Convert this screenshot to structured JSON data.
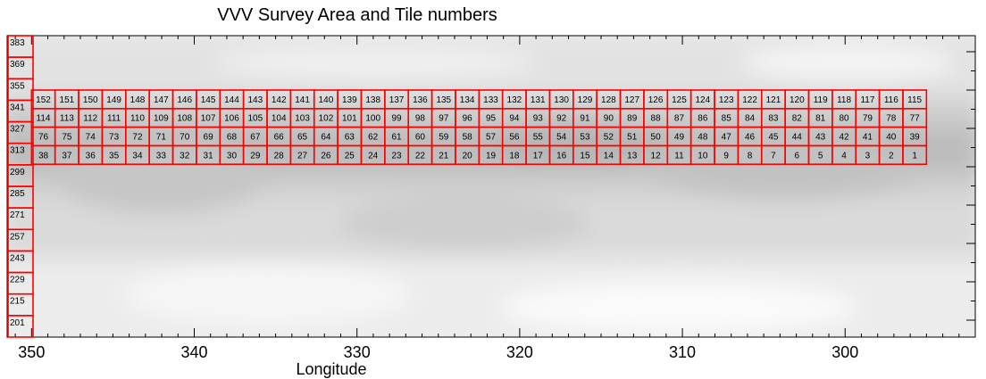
{
  "chart_data": {
    "type": "heatmap",
    "title": "VVV Survey Area and Tile numbers",
    "xlabel": "Longitude",
    "ylabel": "",
    "xlim": [
      351.5,
      292.0
    ],
    "x_ticks": [
      350,
      340,
      330,
      320,
      310,
      300
    ],
    "x_tick_labels": [
      "350",
      "340",
      "330",
      "320",
      "310",
      "300"
    ],
    "colors": {
      "tile_outline": "#ff0000",
      "background_light": "#f2f2f2",
      "background_mid": "#dcdcdc",
      "background_dark": "#c4c4c4",
      "axis": "#000000"
    },
    "bulge_tiles": {
      "lon_range": [
        350.0,
        295.0
      ],
      "columns": 38,
      "rows": [
        {
          "start": 152,
          "end": 115
        },
        {
          "start": 114,
          "end": 77
        },
        {
          "start": 76,
          "end": 39
        },
        {
          "start": 38,
          "end": 1
        }
      ]
    },
    "disk_tiles": [
      "383",
      "369",
      "355",
      "341",
      "327",
      "313",
      "299",
      "285",
      "271",
      "257",
      "243",
      "229",
      "215",
      "201"
    ]
  }
}
